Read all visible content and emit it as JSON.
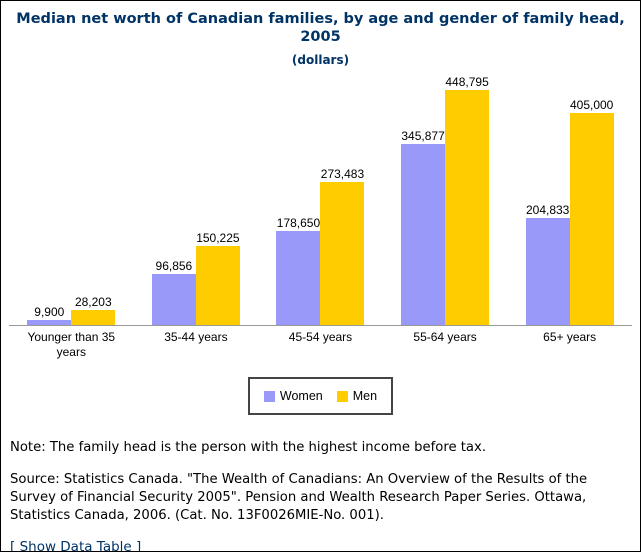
{
  "title": {
    "line1": "Median net worth of Canadian families, by age and gender of family head, 2005",
    "line2": "(dollars)",
    "color": "#003366"
  },
  "chart_data": {
    "type": "bar",
    "categories": [
      "Younger than 35 years",
      "35-44 years",
      "45-54 years",
      "55-64 years",
      "65+ years"
    ],
    "series": [
      {
        "name": "Women",
        "color": "#9999FA",
        "values": [
          9900,
          96856,
          178650,
          345877,
          204833
        ],
        "labels": [
          "9,900",
          "96,856",
          "178,650",
          "345,877",
          "204,833"
        ]
      },
      {
        "name": "Men",
        "color": "#FFCC00",
        "values": [
          28203,
          150225,
          273483,
          448795,
          405000
        ],
        "labels": [
          "28,203",
          "150,225",
          "273,483",
          "448,795",
          "405,000"
        ]
      }
    ],
    "title": "Median net worth of Canadian families, by age and gender of family head, 2005",
    "subtitle": "(dollars)",
    "xlabel": "",
    "ylabel": "",
    "ylim": [
      0,
      448795
    ],
    "grid": false,
    "axis_color": "#999999",
    "legend_position": "bottom-center",
    "value_labels_shown": true
  },
  "legend": {
    "items": [
      {
        "label": "Women",
        "color": "#9999FA"
      },
      {
        "label": "Men",
        "color": "#FFCC00"
      }
    ]
  },
  "note": "Note: The family head is the person with the highest income before tax.",
  "source": "Source: Statistics Canada. \"The Wealth of Canadians: An Overview of the Results of the Survey of Financial Security 2005\". Pension and Wealth Research Paper Series. Ottawa, Statistics Canada, 2006. (Cat. No. 13F0026MIE-No. 001).",
  "data_table_link": {
    "prefix": "[ ",
    "label": "Show Data Table",
    "suffix": " ]"
  }
}
